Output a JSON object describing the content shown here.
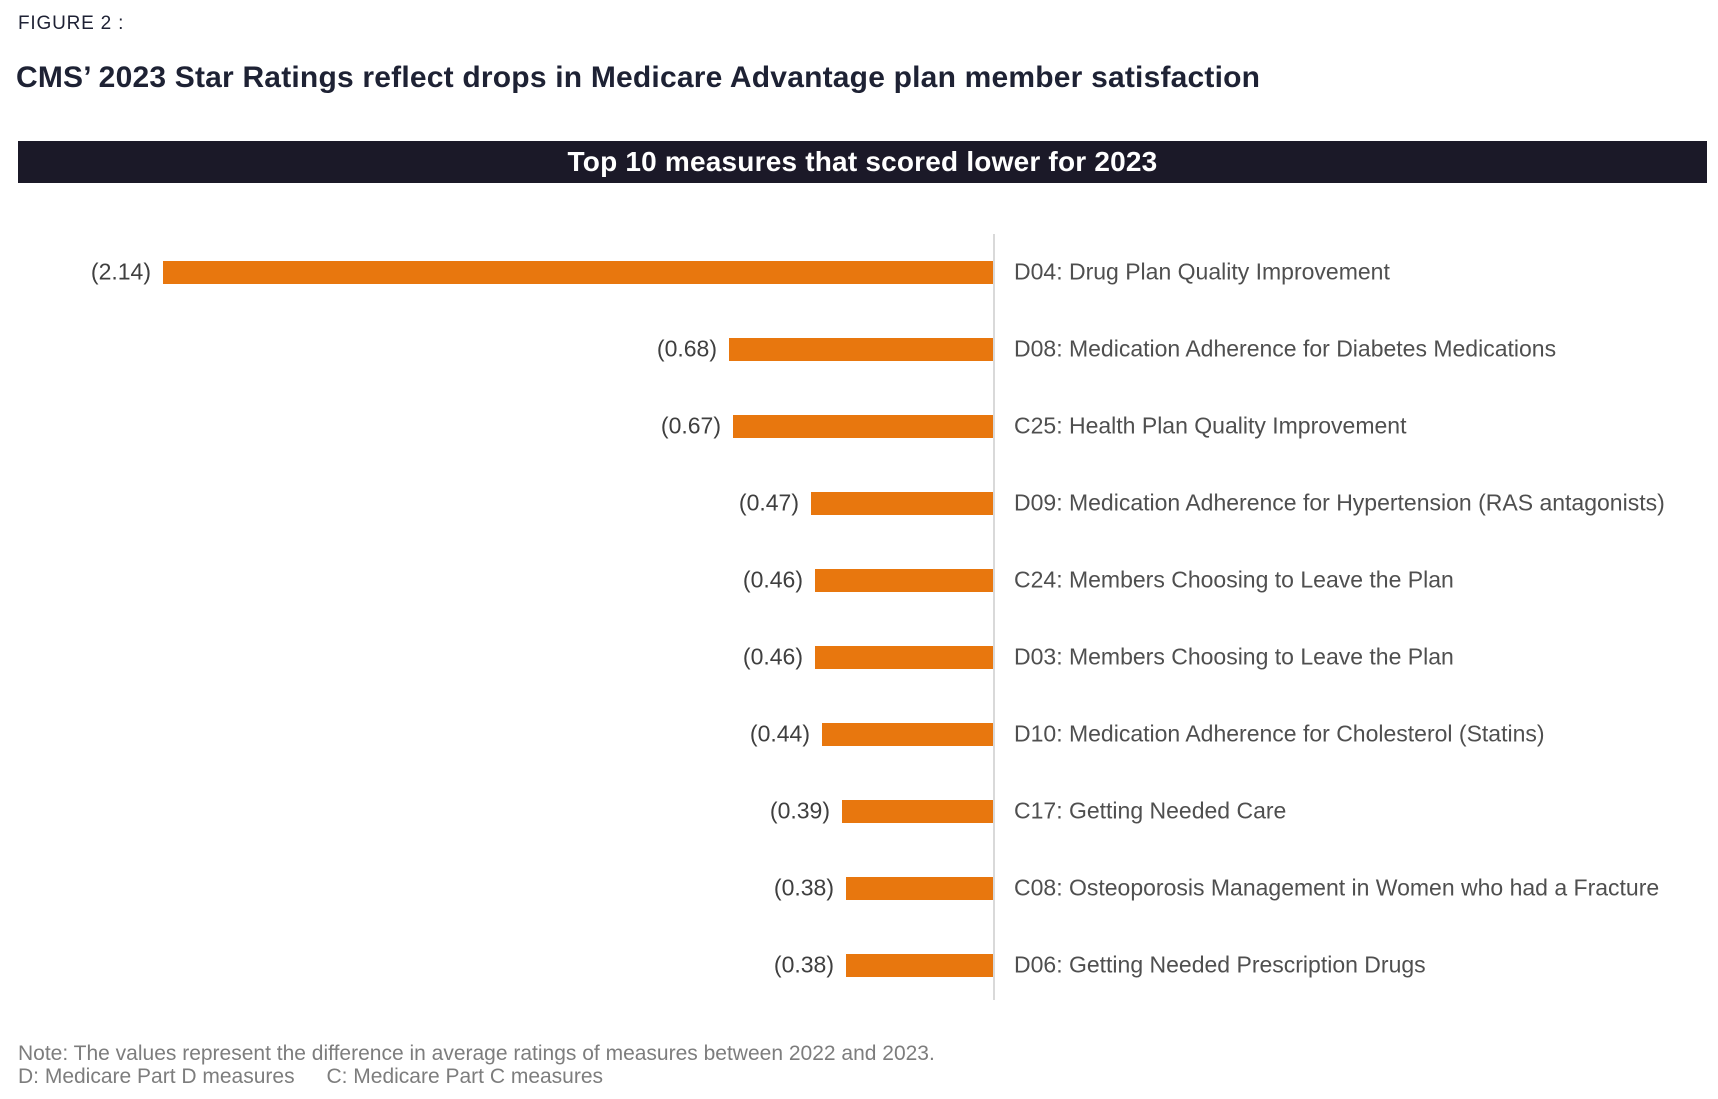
{
  "figure_label": "FIGURE 2 :",
  "title": "CMS’ 2023 Star Ratings reflect drops in Medicare Advantage plan member satisfaction",
  "banner": {
    "text": "Top 10 measures that scored lower for 2023",
    "background_color": "#1b1928",
    "text_color": "#ffffff"
  },
  "chart_data": {
    "type": "bar",
    "orientation": "horizontal",
    "title": "Top 10 measures that scored lower for 2023",
    "categories": [
      "D04: Drug Plan Quality Improvement",
      "D08: Medication Adherence for Diabetes Medications",
      "C25: Health Plan Quality Improvement",
      "D09: Medication Adherence for Hypertension (RAS antagonists)",
      "C24: Members Choosing to Leave the Plan",
      "D03: Members Choosing to Leave the Plan",
      "D10: Medication Adherence for Cholesterol (Statins)",
      "C17: Getting Needed Care",
      "C08: Osteoporosis Management in Women who had a Fracture",
      "D06: Getting Needed Prescription Drugs"
    ],
    "values": [
      -2.14,
      -0.68,
      -0.67,
      -0.47,
      -0.46,
      -0.46,
      -0.44,
      -0.39,
      -0.38,
      -0.38
    ],
    "value_labels": [
      "(2.14)",
      "(0.68)",
      "(0.67)",
      "(0.47)",
      "(0.46)",
      "(0.46)",
      "(0.44)",
      "(0.39)",
      "(0.38)",
      "(0.38)"
    ],
    "xlim": [
      -2.2,
      0
    ],
    "bar_color": "#e8770e",
    "axis_line_color": "#d9d9d9",
    "grid": false,
    "legend": false,
    "xlabel": "",
    "ylabel": ""
  },
  "notes": {
    "line1": "Note: The values represent the difference in average ratings of measures between 2022 and 2023.",
    "legend_d": "D: Medicare Part D measures",
    "legend_c": "C: Medicare Part C measures"
  }
}
